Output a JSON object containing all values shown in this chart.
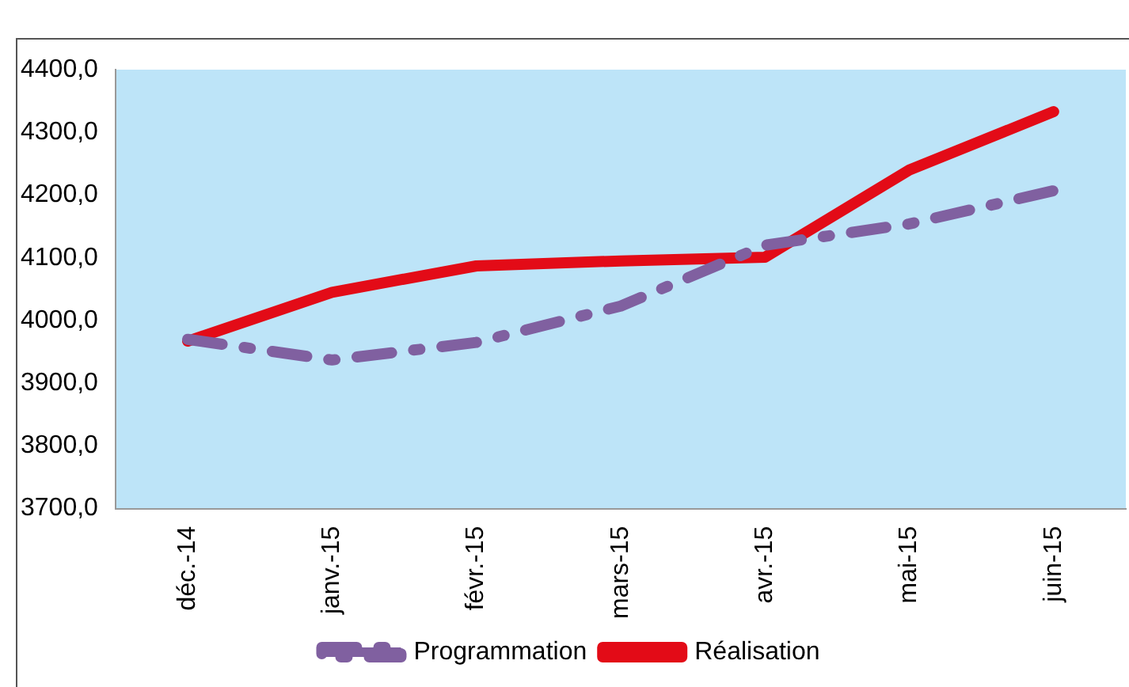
{
  "chart_data": {
    "type": "line",
    "categories": [
      "déc.-14",
      "janv.-15",
      "févr.-15",
      "mars-15",
      "avr.-15",
      "mai-15",
      "juin-15"
    ],
    "series": [
      {
        "name": "Programmation",
        "color": "#8060a0",
        "line_style": "dashed",
        "values": [
          3970,
          3937,
          3965,
          4023,
          4120,
          4154,
          4207
        ]
      },
      {
        "name": "Réalisation",
        "color": "#e30b17",
        "line_style": "solid",
        "values": [
          3967,
          4045,
          4087,
          4095,
          4101,
          4240,
          4333
        ]
      }
    ],
    "ylim": [
      3700,
      4400
    ],
    "yticks": [
      {
        "value": 3700,
        "label": "3700,0"
      },
      {
        "value": 3800,
        "label": "3800,0"
      },
      {
        "value": 3900,
        "label": "3900,0"
      },
      {
        "value": 4000,
        "label": "4000,0"
      },
      {
        "value": 4100,
        "label": "4100,0"
      },
      {
        "value": 4200,
        "label": "4200,0"
      },
      {
        "value": 4300,
        "label": "4300,0"
      },
      {
        "value": 4400,
        "label": "4400,0"
      }
    ],
    "grid": false,
    "legend": "bottom",
    "marker": "none"
  }
}
